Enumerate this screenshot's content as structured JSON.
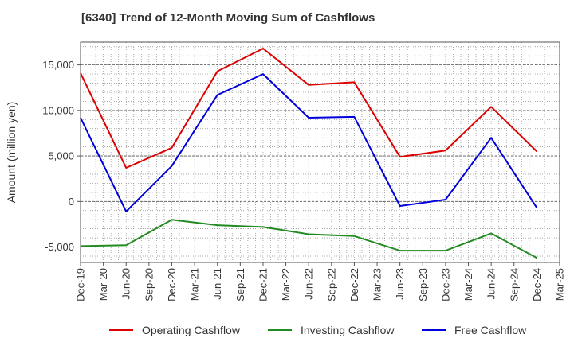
{
  "chart_data": {
    "type": "line",
    "title": "[6340]  Trend of 12-Month Moving Sum of Cashflows",
    "xlabel": "",
    "ylabel": "Amount (million yen)",
    "ylim": [
      -6700,
      17500
    ],
    "y_ticks": [
      -5000,
      0,
      5000,
      10000,
      15000
    ],
    "y_tick_labels": [
      "-5,000",
      "0",
      "5,000",
      "10,000",
      "15,000"
    ],
    "x_tick_labels": [
      "Dec-19",
      "Mar-20",
      "Jun-20",
      "Sep-20",
      "Dec-20",
      "Mar-21",
      "Jun-21",
      "Sep-21",
      "Dec-21",
      "Mar-22",
      "Jun-22",
      "Sep-22",
      "Dec-22",
      "Mar-23",
      "Jun-23",
      "Sep-23",
      "Dec-23",
      "Mar-24",
      "Jun-24",
      "Sep-24",
      "Dec-24",
      "Mar-25"
    ],
    "x": [
      "Dec-19",
      "Jun-20",
      "Dec-20",
      "Jun-21",
      "Dec-21",
      "Jun-22",
      "Dec-22",
      "Jun-23",
      "Dec-23",
      "Jun-24",
      "Dec-24"
    ],
    "series": [
      {
        "name": "Operating Cashflow",
        "color": "#dd0000",
        "values": [
          14100,
          3700,
          5900,
          14300,
          16800,
          12800,
          13100,
          4900,
          5600,
          10400,
          5500
        ]
      },
      {
        "name": "Investing Cashflow",
        "color": "#228B22",
        "values": [
          -4900,
          -4800,
          -2000,
          -2600,
          -2800,
          -3600,
          -3800,
          -5400,
          -5400,
          -3500,
          -6200
        ]
      },
      {
        "name": "Free Cashflow",
        "color": "#0000dd",
        "values": [
          9200,
          -1100,
          3900,
          11700,
          14000,
          9200,
          9300,
          -500,
          200,
          7000,
          -700
        ]
      }
    ],
    "grid": true,
    "legend_position": "bottom"
  }
}
